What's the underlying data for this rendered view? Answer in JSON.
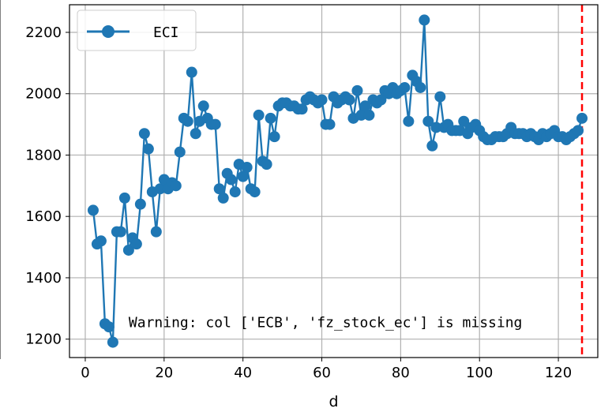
{
  "chart_data": {
    "type": "line",
    "xlabel": "d",
    "ylabel": "",
    "xlim": [
      -4,
      130
    ],
    "ylim": [
      1140,
      2290
    ],
    "x_ticks": [
      0,
      20,
      40,
      60,
      80,
      100,
      120
    ],
    "y_ticks": [
      1200,
      1400,
      1600,
      1800,
      2000,
      2200
    ],
    "grid": true,
    "legend_position": "top-left",
    "series": [
      {
        "name": "ECI",
        "color": "#1f77b4",
        "marker": "circle",
        "x": [
          2,
          3,
          4,
          5,
          6,
          7,
          8,
          9,
          10,
          11,
          12,
          13,
          14,
          15,
          16,
          17,
          18,
          19,
          20,
          21,
          22,
          23,
          24,
          25,
          26,
          27,
          28,
          29,
          30,
          31,
          32,
          33,
          34,
          35,
          36,
          37,
          38,
          39,
          40,
          41,
          42,
          43,
          44,
          45,
          46,
          47,
          48,
          49,
          50,
          51,
          52,
          53,
          54,
          55,
          56,
          57,
          58,
          59,
          60,
          61,
          62,
          63,
          64,
          65,
          66,
          67,
          68,
          69,
          70,
          71,
          72,
          73,
          74,
          75,
          76,
          77,
          78,
          79,
          80,
          81,
          82,
          83,
          84,
          85,
          86,
          87,
          88,
          89,
          90,
          91,
          92,
          93,
          94,
          95,
          96,
          97,
          98,
          99,
          100,
          101,
          102,
          103,
          104,
          105,
          106,
          107,
          108,
          109,
          110,
          111,
          112,
          113,
          114,
          115,
          116,
          117,
          118,
          119,
          120,
          121,
          122,
          123,
          124,
          125,
          126
        ],
        "y": [
          1620,
          1510,
          1520,
          1250,
          1240,
          1190,
          1550,
          1550,
          1660,
          1490,
          1530,
          1510,
          1640,
          1870,
          1820,
          1680,
          1550,
          1690,
          1720,
          1690,
          1710,
          1700,
          1810,
          1920,
          1910,
          2070,
          1870,
          1910,
          1960,
          1920,
          1900,
          1900,
          1690,
          1660,
          1740,
          1720,
          1680,
          1770,
          1730,
          1760,
          1690,
          1680,
          1930,
          1780,
          1770,
          1920,
          1860,
          1960,
          1970,
          1970,
          1960,
          1960,
          1950,
          1950,
          1980,
          1990,
          1980,
          1970,
          1980,
          1900,
          1900,
          1990,
          1970,
          1980,
          1990,
          1980,
          1920,
          2010,
          1930,
          1960,
          1930,
          1980,
          1970,
          1980,
          2010,
          2000,
          2020,
          2000,
          2010,
          2020,
          1910,
          2060,
          2040,
          2020,
          2240,
          1910,
          1830,
          1890,
          1990,
          1890,
          1900,
          1880,
          1880,
          1880,
          1910,
          1870,
          1890,
          1900,
          1880,
          1860,
          1850,
          1850,
          1860,
          1860,
          1860,
          1870,
          1890,
          1870,
          1870,
          1870,
          1860,
          1870,
          1860,
          1850,
          1870,
          1860,
          1870,
          1880,
          1860,
          1860,
          1850,
          1860,
          1870,
          1880,
          1920
        ]
      }
    ],
    "vline": {
      "x": 126,
      "color": "#ff0000",
      "style": "dashed"
    },
    "annotation": {
      "text": "Warning: col ['ECB', 'fz_stock_ec'] is missing",
      "x": 10,
      "y": 1255
    }
  }
}
